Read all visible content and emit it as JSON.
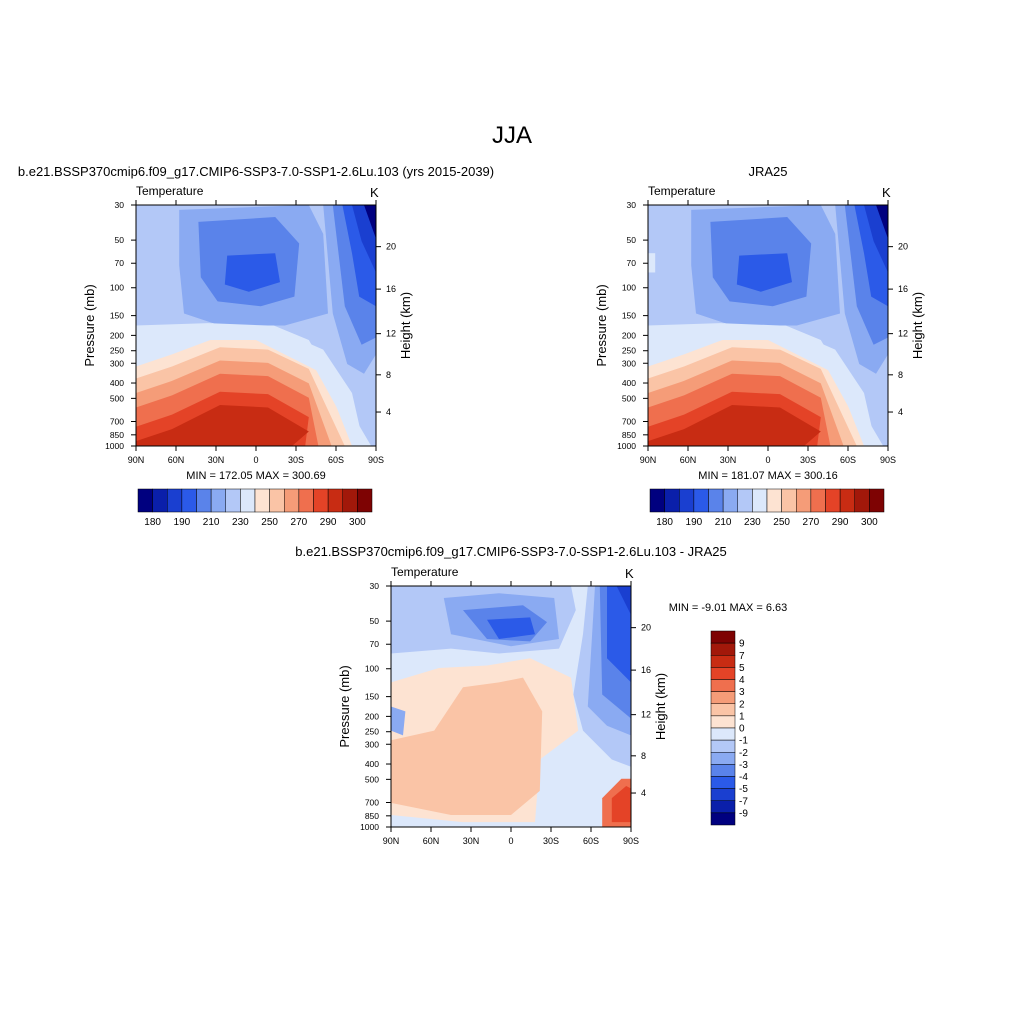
{
  "page": {
    "title": "JJA"
  },
  "colors": {
    "abs_scale": [
      "#00007f",
      "#0a1faa",
      "#1a3fd0",
      "#2b5ae8",
      "#5a83ea",
      "#8aaaf2",
      "#b3c8f7",
      "#dce8fb",
      "#fde3d2",
      "#fac4a6",
      "#f59c78",
      "#ef6f4e",
      "#e44327",
      "#c82c13",
      "#a2180a",
      "#7e0303"
    ],
    "diff_scale": [
      "#00007f",
      "#0a1faa",
      "#1a3fd0",
      "#2b5ae8",
      "#5a83ea",
      "#8aaaf2",
      "#b3c8f7",
      "#dce8fb",
      "#fde3d2",
      "#fac4a6",
      "#f59c78",
      "#ef6f4e",
      "#e44327",
      "#c82c13",
      "#a2180a",
      "#7e0303"
    ]
  },
  "chart_data": [
    {
      "type": "heatmap",
      "title": "b.e21.BSSP370cmip6.f09_g17.CMIP6-SSP3-7.0-SSP1-2.6Lu.103 (yrs 2015-2039)",
      "left_label": "Temperature",
      "unit_label": "K",
      "ylabel": "Pressure (mb)",
      "right_ylabel": "Height (km)",
      "x_ticks": [
        "90N",
        "60N",
        "30N",
        "0",
        "30S",
        "60S",
        "90S"
      ],
      "y_ticks": [
        "30",
        "50",
        "70",
        "100",
        "150",
        "200",
        "250",
        "300",
        "400",
        "500",
        "700",
        "850",
        "1000"
      ],
      "right_ticks": [
        "20",
        "16",
        "12",
        "8",
        "4"
      ],
      "minmax": "MIN = 172.05  MAX = 300.69",
      "colorbar_labels": [
        "180",
        "190",
        "210",
        "230",
        "250",
        "270",
        "290",
        "300"
      ]
    },
    {
      "type": "heatmap",
      "title": "JRA25",
      "left_label": "Temperature",
      "unit_label": "K",
      "ylabel": "Pressure (mb)",
      "right_ylabel": "Height (km)",
      "x_ticks": [
        "90N",
        "60N",
        "30N",
        "0",
        "30S",
        "60S",
        "90S"
      ],
      "y_ticks": [
        "30",
        "50",
        "70",
        "100",
        "150",
        "200",
        "250",
        "300",
        "400",
        "500",
        "700",
        "850",
        "1000"
      ],
      "right_ticks": [
        "20",
        "16",
        "12",
        "8",
        "4"
      ],
      "minmax": "MIN = 181.07  MAX = 300.16",
      "colorbar_labels": [
        "180",
        "190",
        "210",
        "230",
        "250",
        "270",
        "290",
        "300"
      ]
    },
    {
      "type": "heatmap",
      "title": "b.e21.BSSP370cmip6.f09_g17.CMIP6-SSP3-7.0-SSP1-2.6Lu.103 - JRA25",
      "left_label": "Temperature",
      "unit_label": "K",
      "ylabel": "Pressure (mb)",
      "right_ylabel": "Height (km)",
      "x_ticks": [
        "90N",
        "60N",
        "30N",
        "0",
        "30S",
        "60S",
        "90S"
      ],
      "y_ticks": [
        "30",
        "50",
        "70",
        "100",
        "150",
        "200",
        "250",
        "300",
        "400",
        "500",
        "700",
        "850",
        "1000"
      ],
      "right_ticks": [
        "20",
        "16",
        "12",
        "8",
        "4"
      ],
      "minmax": "MIN =  -9.01  MAX =   6.63",
      "colorbar_labels": [
        "9",
        "7",
        "5",
        "4",
        "3",
        "2",
        "1",
        "0",
        "-1",
        "-2",
        "-3",
        "-4",
        "-5",
        "-7",
        "-9"
      ]
    }
  ]
}
